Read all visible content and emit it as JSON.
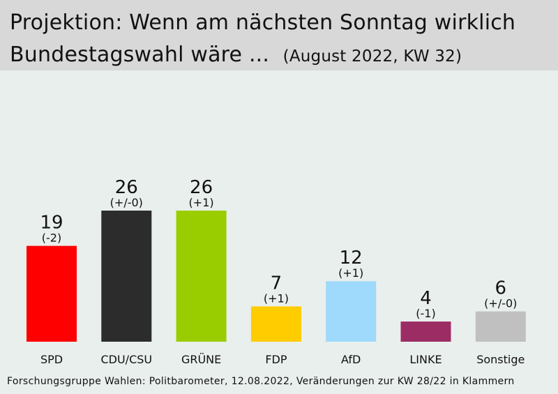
{
  "header": {
    "title_line1": "Projektion: Wenn am nächsten Sonntag wirklich",
    "title_line2": "Bundestagswahl wäre ...",
    "subtitle": "(August 2022, KW 32)"
  },
  "chart_data": {
    "type": "bar",
    "title": "Projektion: Wenn am nächsten Sonntag wirklich Bundestagswahl wäre ...",
    "subtitle": "(August 2022, KW 32)",
    "categories": [
      "SPD",
      "CDU/CSU",
      "GRÜNE",
      "FDP",
      "AfD",
      "LINKE",
      "Sonstige"
    ],
    "values": [
      19,
      26,
      26,
      7,
      12,
      4,
      6
    ],
    "changes": [
      "(-2)",
      "(+/-0)",
      "(+1)",
      "(+1)",
      "(+1)",
      "(-1)",
      "(+/-0)"
    ],
    "colors": [
      "#fe0000",
      "#2c2c2c",
      "#9acd00",
      "#ffcc00",
      "#9fd9fb",
      "#9b2c64",
      "#c0c0c0"
    ],
    "ylim": [
      0,
      30
    ],
    "grid": false,
    "legend": "none"
  },
  "footer": {
    "source": "Forschungsgruppe Wahlen: Politbarometer, 12.08.2022, Veränderungen zur KW 28/22 in Klammern"
  }
}
